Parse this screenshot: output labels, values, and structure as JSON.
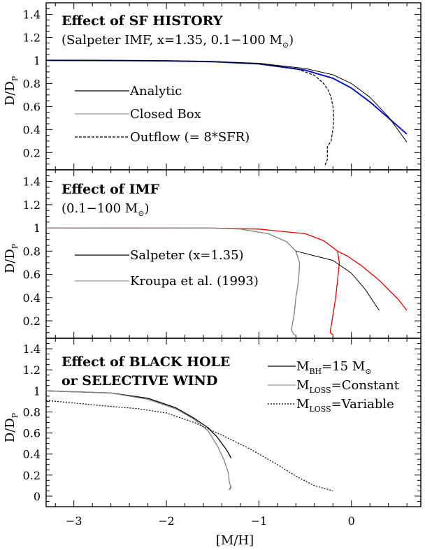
{
  "colors": {
    "blue": "#0a14c8",
    "red": "#e00000",
    "gray": "#808080",
    "black": "#000000"
  },
  "chart_data": {
    "type": "line",
    "xlabel": "[M/H]",
    "ylabel": "D/D_P",
    "xlim": [
      -3.3,
      0.75
    ],
    "x_ticks": [
      "−3",
      "−2",
      "−1",
      "0"
    ],
    "panels": [
      {
        "title_line1": "Effect of SF HISTORY",
        "title_line2": "(Salpeter IMF, x=1.35, 0.1−100 M",
        "ylim": [
          0.05,
          1.5
        ],
        "y_ticks": [
          "0.2",
          "0.4",
          "0.6",
          "0.8",
          "1",
          "1.2",
          "1.4"
        ],
        "legend": [
          {
            "label": "Analytic",
            "style": "solid"
          },
          {
            "label": "Closed Box",
            "style": "thin"
          },
          {
            "label": "Outflow (= 8*SFR)",
            "style": "dashed"
          }
        ],
        "series": [
          {
            "color": "blue",
            "width": 2,
            "dash": "",
            "x": [
              -3.3,
              -2.5,
              -2,
              -1.5,
              -1,
              -0.5,
              -0.2,
              0,
              0.2,
              0.4,
              0.6
            ],
            "y": [
              1,
              0.999,
              0.996,
              0.989,
              0.97,
              0.915,
              0.845,
              0.76,
              0.64,
              0.5,
              0.36
            ]
          },
          {
            "color": "black",
            "width": 1,
            "dash": "",
            "x": [
              -3.3,
              -2.5,
              -2,
              -1.5,
              -1,
              -0.5,
              -0.2,
              0,
              0.2,
              0.4,
              0.5,
              0.6
            ],
            "y": [
              1,
              0.999,
              0.997,
              0.99,
              0.975,
              0.93,
              0.875,
              0.8,
              0.68,
              0.51,
              0.4,
              0.29
            ]
          },
          {
            "color": "black",
            "width": 1.2,
            "dash": "4,2",
            "x": [
              -3.3,
              -2,
              -1.5,
              -1,
              -0.6,
              -0.4,
              -0.3,
              -0.25,
              -0.22,
              -0.2,
              -0.19,
              -0.2,
              -0.22,
              -0.26,
              -0.26,
              -0.29
            ],
            "y": [
              1,
              0.997,
              0.99,
              0.97,
              0.93,
              0.87,
              0.8,
              0.74,
              0.68,
              0.6,
              0.5,
              0.4,
              0.3,
              0.25,
              0.14,
              0.08
            ]
          }
        ]
      },
      {
        "title_line1": "Effect of IMF",
        "title_line2": "(0.1−100 M",
        "ylim": [
          0.05,
          1.5
        ],
        "y_ticks": [
          "0.2",
          "0.4",
          "0.6",
          "0.8",
          "1",
          "1.2",
          "1.4"
        ],
        "legend": [
          {
            "label": "Salpeter (x=1.35)",
            "style": "solid"
          },
          {
            "label": "Kroupa et al. (1993)",
            "style": "thin"
          }
        ],
        "series": [
          {
            "color": "red",
            "width": 1.3,
            "dash": "",
            "x": [
              -3.3,
              -1.5,
              -1,
              -0.5,
              -0.3,
              -0.15,
              -0.13,
              -0.15,
              -0.17,
              -0.2,
              -0.23,
              -0.2
            ],
            "y": [
              1,
              0.998,
              0.99,
              0.95,
              0.89,
              0.8,
              0.7,
              0.55,
              0.4,
              0.25,
              0.1,
              0.08
            ]
          },
          {
            "color": "red",
            "width": 1.3,
            "dash": "",
            "x": [
              -0.15,
              -0.05,
              0.1,
              0.3,
              0.5,
              0.6
            ],
            "y": [
              0.8,
              0.76,
              0.68,
              0.55,
              0.39,
              0.29
            ]
          },
          {
            "color": "gray",
            "width": 1.3,
            "dash": "",
            "x": [
              -3.3,
              -1.5,
              -1.2,
              -0.9,
              -0.7,
              -0.6,
              -0.56,
              -0.57,
              -0.6,
              -0.62,
              -0.65,
              -0.62,
              -0.6
            ],
            "y": [
              1,
              0.998,
              0.99,
              0.95,
              0.88,
              0.8,
              0.7,
              0.55,
              0.4,
              0.25,
              0.12,
              0.08,
              0.08
            ]
          },
          {
            "color": "black",
            "width": 1,
            "dash": "",
            "x": [
              -0.6,
              -0.4,
              -0.2,
              0,
              0.15,
              0.3
            ],
            "y": [
              0.8,
              0.76,
              0.72,
              0.61,
              0.47,
              0.29
            ]
          }
        ]
      },
      {
        "title_line1": "Effect of BLACK HOLE",
        "title_line2": "or SELECTIVE WIND",
        "ylim": [
          -0.1,
          1.5
        ],
        "y_ticks": [
          "0",
          "0.2",
          "0.4",
          "0.6",
          "0.8",
          "1",
          "1.2",
          "1.4"
        ],
        "legend": [
          {
            "label": "M",
            "sub": "BH",
            "rest": "=15 M",
            "sun": true,
            "style": "solid"
          },
          {
            "label": "M",
            "sub": "LOSS",
            "rest": "=Constant",
            "sun": false,
            "style": "thin"
          },
          {
            "label": "M",
            "sub": "LOSS",
            "rest": "=Variable",
            "sun": false,
            "style": "dotted"
          }
        ],
        "series": [
          {
            "color": "black",
            "width": 1.3,
            "dash": "",
            "x": [
              -3.3,
              -2.6,
              -2.2,
              -1.9,
              -1.7,
              -1.55,
              -1.45,
              -1.35,
              -1.3
            ],
            "y": [
              1,
              0.98,
              0.93,
              0.84,
              0.74,
              0.65,
              0.56,
              0.44,
              0.36
            ]
          },
          {
            "color": "gray",
            "width": 1.3,
            "dash": "",
            "x": [
              -3.3,
              -2.6,
              -2.2,
              -1.9,
              -1.7,
              -1.55,
              -1.45,
              -1.38,
              -1.33,
              -1.32,
              -1.3,
              -1.32,
              -1.3
            ],
            "y": [
              1,
              0.98,
              0.92,
              0.83,
              0.73,
              0.62,
              0.48,
              0.35,
              0.22,
              0.14,
              0.08,
              0.06,
              0.1
            ]
          },
          {
            "color": "black",
            "width": 1.2,
            "dash": "2,2",
            "x": [
              -3.3,
              -2.7,
              -2.3,
              -2,
              -1.7,
              -1.4,
              -1.1,
              -0.8,
              -0.6,
              -0.4,
              -0.2
            ],
            "y": [
              0.91,
              0.86,
              0.83,
              0.79,
              0.7,
              0.58,
              0.45,
              0.3,
              0.19,
              0.1,
              0.05
            ]
          }
        ]
      }
    ]
  }
}
